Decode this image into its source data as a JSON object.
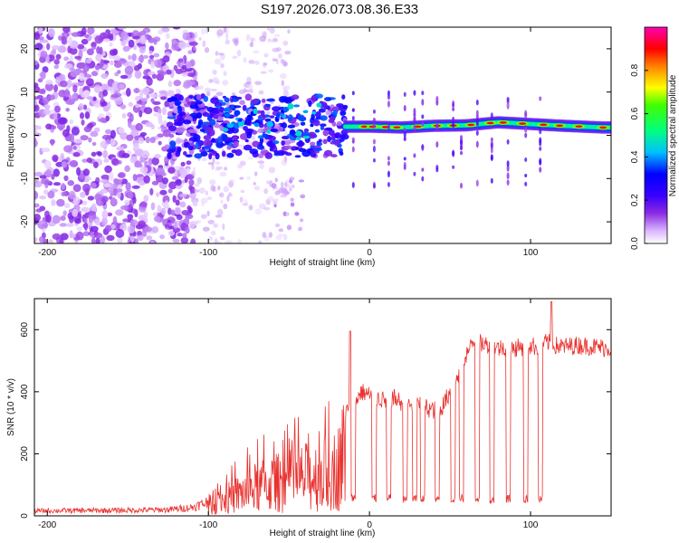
{
  "title": "S197.2026.073.08.36.E33",
  "chart_data": [
    {
      "type": "heatmap",
      "xlabel": "Height of straight line (km)",
      "ylabel": "Frequency (Hz)",
      "xlim": [
        -208,
        150
      ],
      "ylim": [
        -25,
        25
      ],
      "x_ticks": [
        -200,
        -100,
        0,
        100
      ],
      "x_tick_labels": [
        "-200",
        "-100",
        "0",
        "100"
      ],
      "y_ticks": [
        -20,
        -10,
        0,
        10,
        20
      ],
      "y_tick_labels": [
        "-20",
        "-10",
        "0",
        "10",
        "20"
      ],
      "colorbar": {
        "label": "Normalized spectral amplitude",
        "range": [
          0,
          1
        ],
        "ticks": [
          0.0,
          0.2,
          0.4,
          0.6,
          0.8
        ],
        "tick_labels": [
          "0.0",
          "0.2",
          "0.4",
          "0.6",
          "0.8"
        ],
        "colors": [
          "#ffffff",
          "#d9b3ff",
          "#8a2be2",
          "#3a00ff",
          "#0000ff",
          "#00bfff",
          "#00ff80",
          "#ffff00",
          "#ff8000",
          "#ff0000",
          "#ff00b0"
        ]
      },
      "ridge": {
        "description_values": {
          "x": [
            0,
            20,
            40,
            60,
            80,
            100,
            120,
            145
          ],
          "freq": [
            2,
            1.8,
            2.2,
            2.3,
            3.0,
            2.6,
            2.2,
            1.8
          ]
        }
      },
      "noise_region_x": [
        -208,
        -100
      ],
      "transition_region_x": [
        -125,
        -15
      ]
    },
    {
      "type": "line",
      "xlabel": "Height of straight line (km)",
      "ylabel": "SNR (10 * v/v)",
      "xlim": [
        -208,
        150
      ],
      "ylim": [
        0,
        700
      ],
      "x_ticks": [
        -200,
        -100,
        0,
        100
      ],
      "x_tick_labels": [
        "-200",
        "-100",
        "0",
        "100"
      ],
      "y_ticks": [
        0,
        200,
        400,
        600
      ],
      "y_tick_labels": [
        "0",
        "200",
        "400",
        "600"
      ],
      "line_color": "#e8322f",
      "envelope": {
        "x": [
          -208,
          -150,
          -125,
          -110,
          -100,
          -90,
          -80,
          -70,
          -60,
          -50,
          -40,
          -30,
          -20,
          -15,
          -10,
          -5,
          0,
          5,
          10,
          15,
          20,
          25,
          30,
          35,
          40,
          45,
          50,
          55,
          60,
          65,
          70,
          75,
          80,
          85,
          90,
          95,
          100,
          105,
          110,
          115,
          120,
          130,
          140,
          150
        ],
        "y": [
          18,
          20,
          22,
          30,
          50,
          80,
          110,
          140,
          160,
          170,
          190,
          200,
          230,
          330,
          360,
          400,
          390,
          380,
          370,
          380,
          365,
          360,
          355,
          350,
          340,
          350,
          400,
          450,
          520,
          560,
          555,
          550,
          540,
          545,
          540,
          545,
          548,
          545,
          560,
          550,
          545,
          550,
          545,
          540
        ]
      },
      "dropouts_x": [
        -10,
        3,
        12,
        22,
        28,
        33,
        42,
        52,
        57,
        67,
        76,
        86,
        97,
        106
      ],
      "dropout_level": 40,
      "peaks": [
        {
          "x": -12,
          "y": 595
        },
        {
          "x": 113,
          "y": 690
        }
      ]
    }
  ]
}
